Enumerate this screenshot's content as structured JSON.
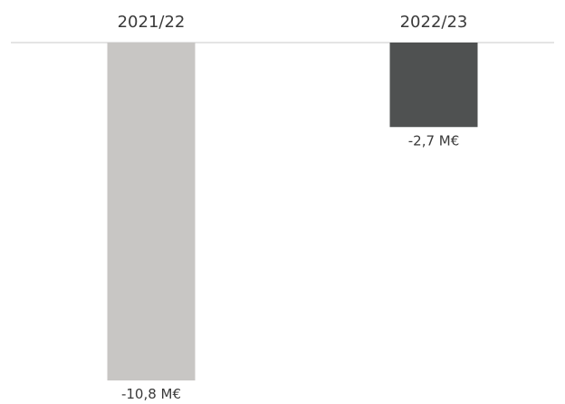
{
  "chart_data": {
    "type": "bar",
    "categories": [
      "2021/22",
      "2022/23"
    ],
    "values": [
      -10.8,
      -2.7
    ],
    "value_labels": [
      "-10,8 M€",
      "-2,7 M€"
    ],
    "unit": "M€",
    "ylim": [
      -10.8,
      0
    ],
    "grid": false,
    "legend": "none",
    "colors": [
      "#c8c6c4",
      "#4f5151"
    ],
    "baseline_color": "#c9c9c9"
  }
}
